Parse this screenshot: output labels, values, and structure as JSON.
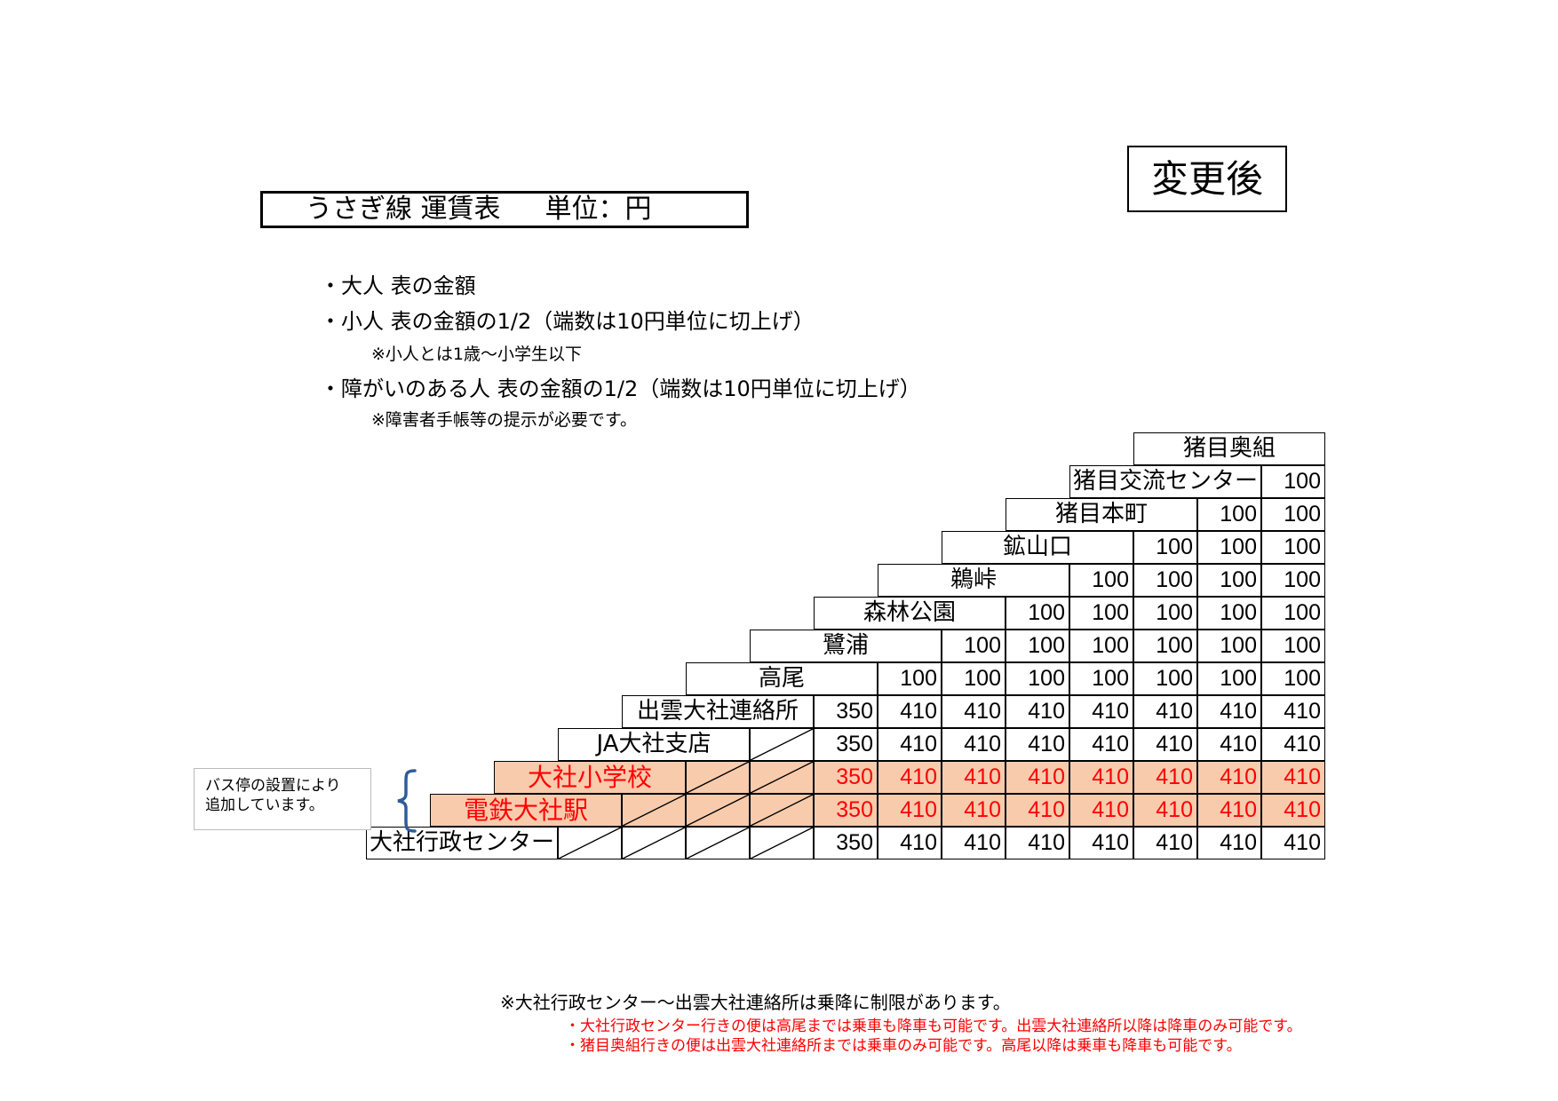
{
  "header": {
    "title": "うさぎ線 運賃表",
    "unit": "単位：円",
    "after_label": "変更後"
  },
  "notes": {
    "adult": "・大人 表の金額",
    "child": "・小人 表の金額の1/2（端数は10円単位に切上げ）",
    "child_note": "※小人とは1歳～小学生以下",
    "disabled": "・障がいのある人 表の金額の1/2（端数は10円単位に切上げ）",
    "disabled_note": "※障害者手帳等の提示が必要です。"
  },
  "fare_table": {
    "stops": [
      {
        "name": "猪目奥組",
        "fares": []
      },
      {
        "name": "猪目交流センター",
        "fares": [
          "100"
        ]
      },
      {
        "name": "猪目本町",
        "fares": [
          "100",
          "100"
        ]
      },
      {
        "name": "鉱山口",
        "fares": [
          "100",
          "100",
          "100"
        ]
      },
      {
        "name": "鵜峠",
        "fares": [
          "100",
          "100",
          "100",
          "100"
        ]
      },
      {
        "name": "森林公園",
        "fares": [
          "100",
          "100",
          "100",
          "100",
          "100"
        ]
      },
      {
        "name": "鷺浦",
        "fares": [
          "100",
          "100",
          "100",
          "100",
          "100",
          "100"
        ]
      },
      {
        "name": "高尾",
        "fares": [
          "100",
          "100",
          "100",
          "100",
          "100",
          "100",
          "100"
        ]
      },
      {
        "name": "出雲大社連絡所",
        "fares": [
          "350",
          "410",
          "410",
          "410",
          "410",
          "410",
          "410",
          "410"
        ]
      },
      {
        "name": "JA大社支店",
        "fares": [
          "350",
          "410",
          "410",
          "410",
          "410",
          "410",
          "410",
          "410"
        ]
      },
      {
        "name": "大社小学校",
        "fares": [
          "350",
          "410",
          "410",
          "410",
          "410",
          "410",
          "410",
          "410"
        ],
        "highlight": true
      },
      {
        "name": "電鉄大社駅",
        "fares": [
          "350",
          "410",
          "410",
          "410",
          "410",
          "410",
          "410",
          "410"
        ],
        "highlight": true
      },
      {
        "name": "大社行政センター",
        "fares": [
          "350",
          "410",
          "410",
          "410",
          "410",
          "410",
          "410",
          "410"
        ]
      }
    ],
    "highlight_bg": "#f8cbad",
    "highlight_text": "#ff0000"
  },
  "callout": {
    "line1": "バス停の設置により",
    "line2": "追加しています。"
  },
  "footnotes": {
    "main": "※大社行政センター～出雲大社連絡所は乗降に制限があります。",
    "red1": "・大社行政センター行きの便は高尾までは乗車も降車も可能です。出雲大社連絡所以降は降車のみ可能です。",
    "red2": "・猪目奥組行きの便は出雲大社連絡所までは乗車のみ可能です。高尾以降は乗車も降車も可能です。"
  }
}
